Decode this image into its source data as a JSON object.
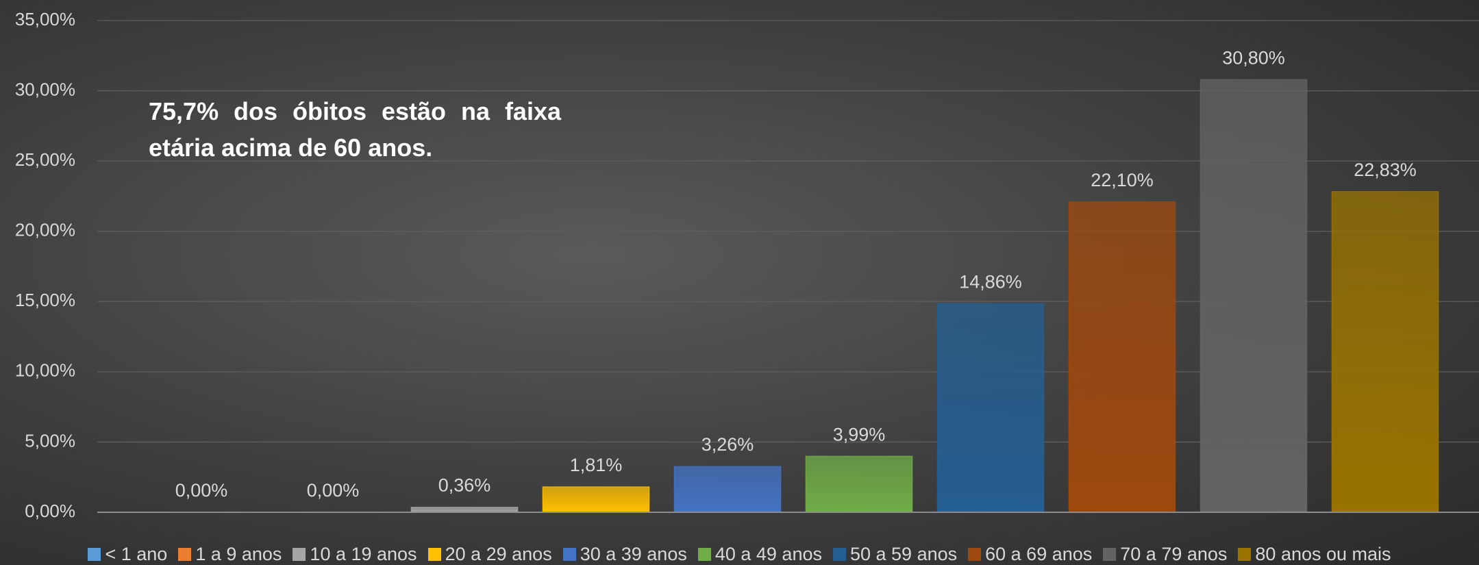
{
  "chart_data": {
    "type": "bar",
    "annotation": "75,7% dos óbitos estão na  faixa etária acima de 60 anos.",
    "categories": [
      "< 1 ano",
      "1 a 9 anos",
      "10 a 19 anos",
      "20 a 29 anos",
      "30 a 39 anos",
      "40 a 49 anos",
      "50 a 59 anos",
      "60 a 69 anos",
      "70 a 79 anos",
      "80 anos ou mais"
    ],
    "values": [
      0,
      0,
      0.36,
      1.81,
      3.26,
      3.99,
      14.86,
      22.1,
      30.8,
      22.83
    ],
    "value_labels": [
      "0,00%",
      "0,00%",
      "0,36%",
      "1,81%",
      "3,26%",
      "3,99%",
      "14,86%",
      "22,10%",
      "30,80%",
      "22,83%"
    ],
    "colors": [
      "#5b9bd5",
      "#ed7d31",
      "#a5a5a5",
      "#ffc000",
      "#4472c4",
      "#70ad47",
      "#255e91",
      "#9e480e",
      "#636363",
      "#997300"
    ],
    "ylim": [
      0,
      35
    ],
    "yticks": [
      {
        "value": 0,
        "label": "0,00%"
      },
      {
        "value": 5,
        "label": "5,00%"
      },
      {
        "value": 10,
        "label": "10,00%"
      },
      {
        "value": 15,
        "label": "15,00%"
      },
      {
        "value": 20,
        "label": "20,00%"
      },
      {
        "value": 25,
        "label": "25,00%"
      },
      {
        "value": 30,
        "label": "30,00%"
      },
      {
        "value": 35,
        "label": "35,00%"
      }
    ],
    "grid": true,
    "legend": "bottom"
  }
}
